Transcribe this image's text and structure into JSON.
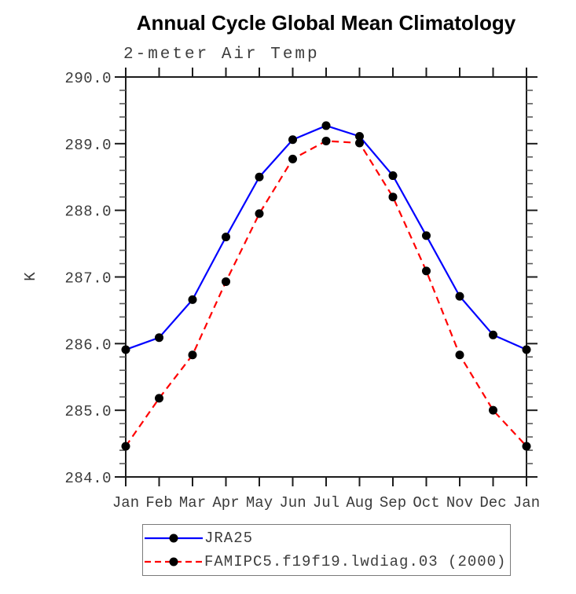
{
  "title": "Annual Cycle Global Mean Climatology",
  "chart_data": {
    "type": "line",
    "title": "Annual Cycle Global Mean Climatology",
    "subtitle": "2-meter Air Temp",
    "xlabel": "",
    "ylabel": "K",
    "categories": [
      "Jan",
      "Feb",
      "Mar",
      "Apr",
      "May",
      "Jun",
      "Jul",
      "Aug",
      "Sep",
      "Oct",
      "Nov",
      "Dec",
      "Jan"
    ],
    "ylim": [
      284.0,
      290.0
    ],
    "y_major_ticks": [
      290.0,
      289.0,
      288.0,
      287.0,
      286.0,
      285.0,
      284.0
    ],
    "y_minor_interval": 0.2,
    "grid": false,
    "legend_position": "bottom",
    "series": [
      {
        "name": "JRA25",
        "color": "#0000ff",
        "line_style": "solid",
        "marker": "filled-circle",
        "marker_color": "#000000",
        "values": [
          285.91,
          286.09,
          286.66,
          287.6,
          288.5,
          289.06,
          289.27,
          289.11,
          288.52,
          287.62,
          286.71,
          286.13,
          285.91
        ]
      },
      {
        "name": "FAMIPC5.f19f19.lwdiag.03 (2000)",
        "color": "#ff0000",
        "line_style": "dashed",
        "marker": "filled-circle",
        "marker_color": "#000000",
        "values": [
          284.46,
          285.18,
          285.83,
          286.93,
          287.95,
          288.77,
          289.04,
          289.01,
          288.2,
          287.09,
          285.83,
          285.0,
          284.46
        ]
      }
    ]
  },
  "colors": {
    "axis": "#1c1c1c",
    "minor_tick": "#5a5a5a",
    "text_gray": "#3a3a3a",
    "marker": "#000000",
    "background": "#ffffff"
  }
}
